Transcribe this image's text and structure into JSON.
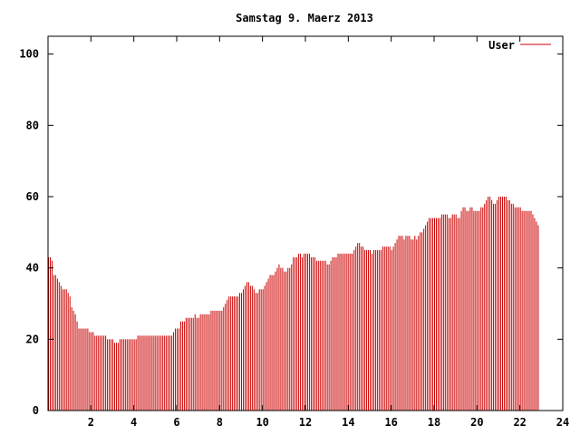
{
  "chart_data": {
    "type": "bar",
    "title": "Samstag 9. Maerz 2013",
    "xlabel": "",
    "ylabel": "",
    "xlim": [
      0,
      24
    ],
    "ylim": [
      0,
      105
    ],
    "x_ticks": [
      2,
      4,
      6,
      8,
      10,
      12,
      14,
      16,
      18,
      20,
      22,
      24
    ],
    "x_tick_labels": [
      "2",
      "4",
      "6",
      "8",
      "10",
      "12",
      "14",
      "16",
      "18",
      "20",
      "22",
      "24"
    ],
    "y_ticks": [
      0,
      20,
      40,
      60,
      80,
      100
    ],
    "y_tick_labels": [
      "0",
      "20",
      "40",
      "60",
      "80",
      "100"
    ],
    "grid": false,
    "legend_position": "top-right",
    "colors": {
      "bars": "#cc0000",
      "axis": "#000000",
      "background": "#ffffff"
    },
    "series": [
      {
        "name": "User",
        "interval_minutes": 5,
        "values": [
          43,
          43,
          42,
          38,
          38,
          37,
          36,
          35,
          34,
          34,
          34,
          33,
          32,
          29,
          28,
          27,
          25,
          23,
          23,
          23,
          23,
          23,
          23,
          22,
          22,
          22,
          21,
          21,
          21,
          21,
          21,
          21,
          21,
          20,
          20,
          20,
          20,
          19,
          19,
          19,
          20,
          20,
          20,
          20,
          20,
          20,
          20,
          20,
          20,
          20,
          21,
          21,
          21,
          21,
          21,
          21,
          21,
          21,
          21,
          21,
          21,
          21,
          21,
          21,
          21,
          21,
          21,
          21,
          21,
          21,
          22,
          23,
          23,
          23,
          25,
          25,
          25,
          26,
          26,
          26,
          26,
          26,
          27,
          26,
          26,
          27,
          27,
          27,
          27,
          27,
          27,
          28,
          28,
          28,
          28,
          28,
          28,
          28,
          29,
          30,
          31,
          32,
          32,
          32,
          32,
          32,
          32,
          33,
          33,
          34,
          35,
          36,
          36,
          35,
          35,
          34,
          33,
          33,
          34,
          34,
          34,
          35,
          36,
          37,
          38,
          38,
          38,
          39,
          40,
          41,
          40,
          40,
          39,
          39,
          40,
          40,
          41,
          43,
          43,
          43,
          44,
          44,
          43,
          44,
          44,
          44,
          44,
          43,
          43,
          43,
          42,
          42,
          42,
          42,
          42,
          42,
          41,
          41,
          42,
          43,
          43,
          43,
          44,
          44,
          44,
          44,
          44,
          44,
          44,
          44,
          44,
          45,
          46,
          47,
          47,
          46,
          46,
          45,
          45,
          45,
          45,
          44,
          45,
          45,
          45,
          45,
          45,
          46,
          46,
          46,
          46,
          46,
          45,
          46,
          47,
          48,
          49,
          49,
          49,
          48,
          49,
          49,
          49,
          48,
          48,
          49,
          48,
          49,
          50,
          50,
          51,
          52,
          53,
          54,
          54,
          54,
          54,
          54,
          54,
          54,
          55,
          55,
          55,
          55,
          54,
          54,
          55,
          55,
          55,
          54,
          54,
          56,
          57,
          57,
          56,
          56,
          57,
          57,
          56,
          56,
          56,
          56,
          57,
          57,
          58,
          59,
          60,
          60,
          59,
          58,
          58,
          59,
          60,
          60,
          60,
          60,
          60,
          59,
          59,
          58,
          58,
          57,
          57,
          57,
          57,
          56,
          56,
          56,
          56,
          56,
          56,
          55,
          54,
          53,
          52
        ]
      }
    ]
  }
}
